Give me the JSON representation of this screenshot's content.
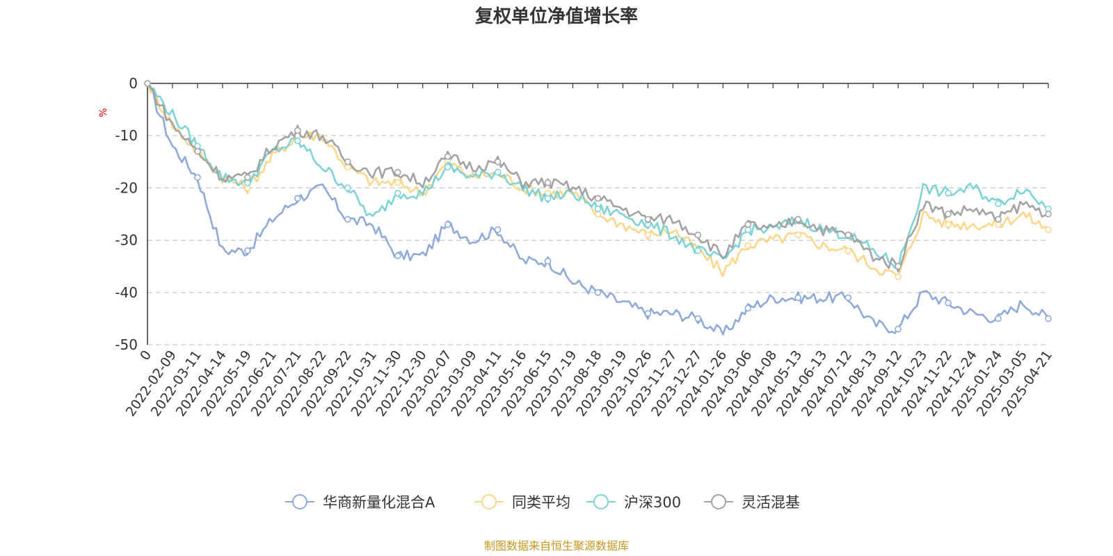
{
  "chart_data": {
    "type": "line",
    "title": "复权单位净值增长率",
    "ylabel": "%",
    "ylim": [
      -50,
      0
    ],
    "yticks": [
      "0",
      "-10",
      "-20",
      "-30",
      "-40",
      "-50"
    ],
    "categories": [
      "0",
      "2022-02-09",
      "2022-03-11",
      "2022-04-14",
      "2022-05-19",
      "2022-06-21",
      "2022-07-21",
      "2022-08-22",
      "2022-09-22",
      "2022-10-31",
      "2022-11-30",
      "2022-12-30",
      "2023-02-07",
      "2023-03-09",
      "2023-04-11",
      "2023-05-16",
      "2023-06-15",
      "2023-07-19",
      "2023-08-18",
      "2023-09-19",
      "2023-10-26",
      "2023-11-27",
      "2023-12-27",
      "2024-01-26",
      "2024-03-06",
      "2024-04-08",
      "2024-05-13",
      "2024-06-13",
      "2024-07-12",
      "2024-08-13",
      "2024-09-12",
      "2024-10-23",
      "2024-11-22",
      "2024-12-24",
      "2025-01-24",
      "2025-03-05",
      "2025-04-21"
    ],
    "series": [
      {
        "name": "华商新量化混合A",
        "color": "#8fa9d8",
        "values": [
          0,
          -12,
          -18,
          -32,
          -32,
          -26,
          -22,
          -20,
          -26,
          -27,
          -33,
          -33,
          -27,
          -30,
          -28,
          -34,
          -34,
          -38,
          -40,
          -42,
          -44,
          -44,
          -45,
          -48,
          -43,
          -41,
          -41,
          -41,
          -41,
          -46,
          -47,
          -40,
          -42,
          -44,
          -45,
          -42,
          -45
        ]
      },
      {
        "name": "同类平均",
        "color": "#fcd68b",
        "values": [
          0,
          -8,
          -13,
          -18,
          -20,
          -14,
          -10,
          -10,
          -16,
          -19,
          -19,
          -21,
          -15,
          -18,
          -17,
          -20,
          -21,
          -21,
          -25,
          -27,
          -29,
          -28,
          -32,
          -36,
          -31,
          -30,
          -29,
          -31,
          -32,
          -35,
          -37,
          -25,
          -27,
          -27,
          -27,
          -25,
          -28
        ]
      },
      {
        "name": "沪深300",
        "color": "#7dd3d6",
        "values": [
          0,
          -6,
          -12,
          -18,
          -19,
          -13,
          -11,
          -16,
          -20,
          -26,
          -21,
          -21,
          -16,
          -18,
          -17,
          -20,
          -22,
          -21,
          -24,
          -25,
          -27,
          -29,
          -32,
          -34,
          -28,
          -28,
          -26,
          -28,
          -29,
          -32,
          -35,
          -20,
          -21,
          -20,
          -23,
          -20,
          -24
        ]
      },
      {
        "name": "灵活混基",
        "color": "#a3a3a3",
        "values": [
          0,
          -8,
          -13,
          -18,
          -18,
          -12,
          -9,
          -10,
          -15,
          -17,
          -17,
          -19,
          -14,
          -16,
          -15,
          -19,
          -19,
          -20,
          -22,
          -24,
          -26,
          -26,
          -29,
          -33,
          -27,
          -28,
          -26,
          -28,
          -29,
          -33,
          -35,
          -23,
          -25,
          -24,
          -26,
          -23,
          -25
        ]
      }
    ]
  },
  "source": "制图数据来自恒生聚源数据库"
}
